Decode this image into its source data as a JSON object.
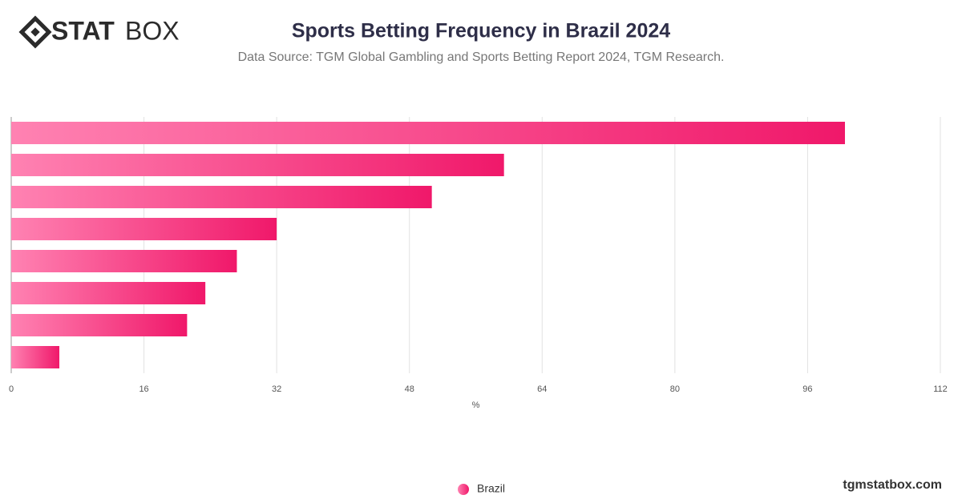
{
  "logo": {
    "bold": "STAT",
    "light": "BOX"
  },
  "footer": "tgmstatbox.com",
  "chart_data": {
    "type": "bar",
    "orientation": "horizontal",
    "title": "Sports Betting Frequency in Brazil 2024",
    "subtitle": "Data Source: TGM Global Gambling and Sports Betting Report 2024, TGM Research.",
    "x_label": "%",
    "categories": [
      null,
      null,
      null,
      null,
      null,
      null,
      null,
      null
    ],
    "series": [
      {
        "name": "Brazil",
        "color": "#f0186a",
        "gradient_start": "#ff82b2",
        "values": [
          100.5,
          59.4,
          50.7,
          32,
          27.2,
          23.4,
          21.2,
          5.8
        ]
      }
    ],
    "xlim": [
      0,
      112
    ],
    "xticks": [
      0,
      16,
      32,
      48,
      64,
      80,
      96,
      112
    ],
    "grid": true,
    "legend": "bottom"
  }
}
